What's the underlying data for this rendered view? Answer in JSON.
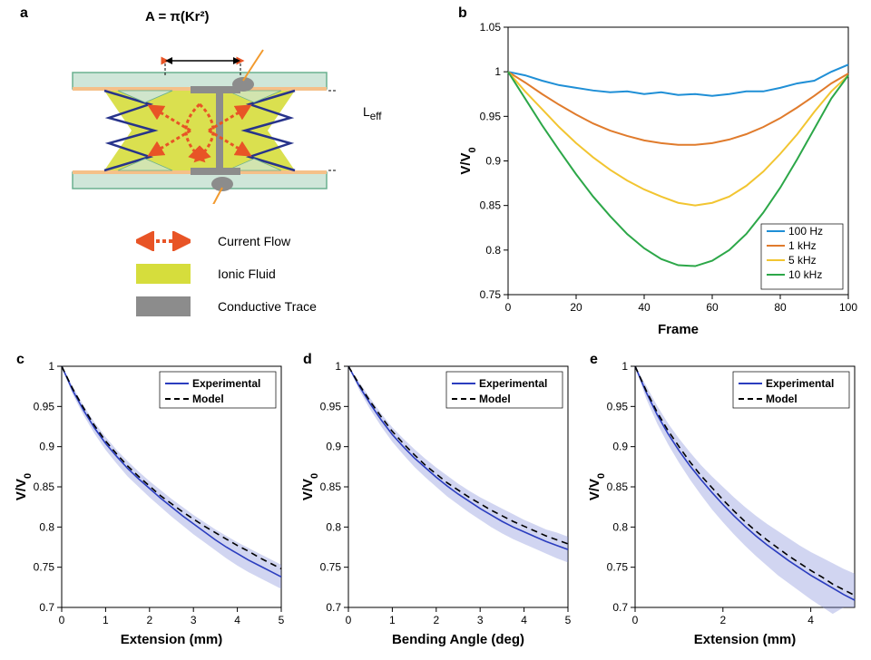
{
  "panel_labels": {
    "a": "a",
    "b": "b",
    "c": "c",
    "d": "d",
    "e": "e"
  },
  "panel_a": {
    "formula": "A = π(Kr²)",
    "leff_label": "L",
    "leff_sub": "eff",
    "legend": {
      "current_flow": "Current Flow",
      "ionic_fluid": "Ionic Fluid",
      "conductive_trace": "Conductive Trace"
    },
    "colors": {
      "fluid": "#d6dd3c",
      "trace": "#8c8c8c",
      "arrow": "#e85426",
      "zigzag": "#27338b",
      "plate_fill": "#cfe6d9",
      "plate_stroke": "#6ab08f",
      "membrane": "#f5c089",
      "wire": "#f29a2e"
    }
  },
  "panel_b": {
    "type": "line",
    "xlabel": "Frame",
    "ylabel": "V/V",
    "ylabel_sub": "0",
    "xlim": [
      0,
      100
    ],
    "ylim": [
      0.75,
      1.05
    ],
    "xticks": [
      0,
      20,
      40,
      60,
      80,
      100
    ],
    "yticks": [
      0.75,
      0.8,
      0.85,
      0.9,
      0.95,
      1,
      1.05
    ],
    "background": "#ffffff",
    "box_color": "#000000",
    "line_width": 2,
    "tick_fontsize": 12,
    "label_fontsize": 15,
    "legend_pos": "lower-right",
    "series": [
      {
        "name": "100 Hz",
        "color": "#1f8fd6",
        "x": [
          0,
          5,
          10,
          15,
          20,
          25,
          30,
          35,
          40,
          45,
          50,
          55,
          60,
          65,
          70,
          75,
          80,
          85,
          90,
          95,
          100
        ],
        "y": [
          1.0,
          0.996,
          0.99,
          0.985,
          0.982,
          0.979,
          0.977,
          0.978,
          0.975,
          0.977,
          0.974,
          0.975,
          0.973,
          0.975,
          0.978,
          0.978,
          0.982,
          0.987,
          0.99,
          1.0,
          1.008
        ]
      },
      {
        "name": "1 kHz",
        "color": "#e07b2c",
        "x": [
          0,
          5,
          10,
          15,
          20,
          25,
          30,
          35,
          40,
          45,
          50,
          55,
          60,
          65,
          70,
          75,
          80,
          85,
          90,
          95,
          100
        ],
        "y": [
          1.0,
          0.988,
          0.975,
          0.963,
          0.952,
          0.942,
          0.934,
          0.928,
          0.923,
          0.92,
          0.918,
          0.918,
          0.92,
          0.924,
          0.93,
          0.938,
          0.948,
          0.96,
          0.973,
          0.987,
          0.998
        ]
      },
      {
        "name": "5 kHz",
        "color": "#f2c531",
        "x": [
          0,
          5,
          10,
          15,
          20,
          25,
          30,
          35,
          40,
          45,
          50,
          55,
          60,
          65,
          70,
          75,
          80,
          85,
          90,
          95,
          100
        ],
        "y": [
          1.0,
          0.978,
          0.958,
          0.938,
          0.92,
          0.904,
          0.89,
          0.878,
          0.868,
          0.86,
          0.853,
          0.85,
          0.853,
          0.86,
          0.872,
          0.888,
          0.908,
          0.93,
          0.955,
          0.978,
          0.996
        ]
      },
      {
        "name": "10 kHz",
        "color": "#2ca748",
        "x": [
          0,
          5,
          10,
          15,
          20,
          25,
          30,
          35,
          40,
          45,
          50,
          55,
          60,
          65,
          70,
          75,
          80,
          85,
          90,
          95,
          100
        ],
        "y": [
          1.0,
          0.97,
          0.94,
          0.912,
          0.885,
          0.86,
          0.838,
          0.818,
          0.802,
          0.79,
          0.783,
          0.782,
          0.788,
          0.8,
          0.818,
          0.842,
          0.87,
          0.902,
          0.936,
          0.97,
          0.996
        ]
      }
    ]
  },
  "panel_c": {
    "type": "line",
    "xlabel": "Extension (mm)",
    "ylabel": "V/V",
    "ylabel_sub": "0",
    "xlim": [
      0,
      5
    ],
    "ylim": [
      0.7,
      1.0
    ],
    "xticks": [
      0,
      1,
      2,
      3,
      4,
      5
    ],
    "yticks": [
      0.7,
      0.75,
      0.8,
      0.85,
      0.9,
      0.95,
      1
    ],
    "line_width": 1.6,
    "exp_color": "#2b3dbf",
    "model_color": "#000000",
    "band_color": "#7a86d8",
    "band_opacity": 0.35,
    "legend": {
      "experimental": "Experimental",
      "model": "Model"
    },
    "x": [
      0,
      0.25,
      0.5,
      0.75,
      1.0,
      1.25,
      1.5,
      1.75,
      2.0,
      2.25,
      2.5,
      2.75,
      3.0,
      3.25,
      3.5,
      3.75,
      4.0,
      4.25,
      4.5,
      4.75,
      5.0
    ],
    "exp": [
      1.0,
      0.97,
      0.945,
      0.923,
      0.904,
      0.888,
      0.873,
      0.86,
      0.848,
      0.836,
      0.825,
      0.814,
      0.804,
      0.794,
      0.784,
      0.775,
      0.767,
      0.759,
      0.752,
      0.745,
      0.738
    ],
    "model": [
      1.0,
      0.972,
      0.948,
      0.926,
      0.907,
      0.891,
      0.876,
      0.863,
      0.851,
      0.839,
      0.829,
      0.819,
      0.81,
      0.801,
      0.793,
      0.785,
      0.777,
      0.77,
      0.762,
      0.755,
      0.748
    ],
    "lo": [
      1.0,
      0.965,
      0.939,
      0.916,
      0.896,
      0.879,
      0.863,
      0.85,
      0.837,
      0.825,
      0.813,
      0.802,
      0.791,
      0.781,
      0.771,
      0.761,
      0.752,
      0.744,
      0.737,
      0.73,
      0.723
    ],
    "hi": [
      1.0,
      0.975,
      0.951,
      0.93,
      0.912,
      0.896,
      0.882,
      0.869,
      0.857,
      0.846,
      0.835,
      0.825,
      0.815,
      0.806,
      0.797,
      0.789,
      0.781,
      0.774,
      0.767,
      0.76,
      0.753
    ]
  },
  "panel_d": {
    "type": "line",
    "xlabel": "Bending Angle (deg)",
    "ylabel": "V/V",
    "ylabel_sub": "0",
    "xlim": [
      0,
      5
    ],
    "ylim": [
      0.7,
      1.0
    ],
    "xticks": [
      0,
      1,
      2,
      3,
      4,
      5
    ],
    "yticks": [
      0.7,
      0.75,
      0.8,
      0.85,
      0.9,
      0.95,
      1
    ],
    "line_width": 1.6,
    "exp_color": "#2b3dbf",
    "model_color": "#000000",
    "band_color": "#7a86d8",
    "band_opacity": 0.35,
    "legend": {
      "experimental": "Experimental",
      "model": "Model"
    },
    "x": [
      0,
      0.25,
      0.5,
      0.75,
      1.0,
      1.25,
      1.5,
      1.75,
      2.0,
      2.25,
      2.5,
      2.75,
      3.0,
      3.25,
      3.5,
      3.75,
      4.0,
      4.25,
      4.5,
      4.75,
      5.0
    ],
    "exp": [
      1.0,
      0.975,
      0.953,
      0.933,
      0.915,
      0.9,
      0.886,
      0.874,
      0.862,
      0.851,
      0.841,
      0.832,
      0.823,
      0.815,
      0.807,
      0.8,
      0.794,
      0.788,
      0.782,
      0.777,
      0.772
    ],
    "model": [
      1.0,
      0.977,
      0.956,
      0.937,
      0.919,
      0.904,
      0.89,
      0.877,
      0.866,
      0.855,
      0.846,
      0.837,
      0.829,
      0.821,
      0.814,
      0.807,
      0.801,
      0.795,
      0.789,
      0.784,
      0.779
    ],
    "lo": [
      1.0,
      0.97,
      0.946,
      0.925,
      0.906,
      0.89,
      0.875,
      0.862,
      0.85,
      0.838,
      0.828,
      0.818,
      0.809,
      0.8,
      0.792,
      0.785,
      0.779,
      0.773,
      0.767,
      0.761,
      0.756
    ],
    "hi": [
      1.0,
      0.98,
      0.96,
      0.941,
      0.924,
      0.91,
      0.897,
      0.885,
      0.874,
      0.864,
      0.854,
      0.845,
      0.837,
      0.83,
      0.823,
      0.816,
      0.809,
      0.803,
      0.797,
      0.793,
      0.788
    ]
  },
  "panel_e": {
    "type": "line",
    "xlabel": "Extension (mm)",
    "ylabel": "V/V",
    "ylabel_sub": "0",
    "xlim": [
      0,
      5
    ],
    "ylim": [
      0.7,
      1.0
    ],
    "xticks": [
      0,
      2,
      4
    ],
    "yticks": [
      0.7,
      0.75,
      0.8,
      0.85,
      0.9,
      0.95,
      1
    ],
    "line_width": 1.6,
    "exp_color": "#2b3dbf",
    "model_color": "#000000",
    "band_color": "#7a86d8",
    "band_opacity": 0.35,
    "legend": {
      "experimental": "Experimental",
      "model": "Model"
    },
    "x": [
      0,
      0.25,
      0.5,
      0.75,
      1.0,
      1.25,
      1.5,
      1.75,
      2.0,
      2.25,
      2.5,
      2.75,
      3.0,
      3.25,
      3.5,
      3.75,
      4.0,
      4.25,
      4.5,
      4.75,
      5.0
    ],
    "exp": [
      1.0,
      0.968,
      0.94,
      0.916,
      0.895,
      0.876,
      0.859,
      0.843,
      0.828,
      0.814,
      0.801,
      0.789,
      0.778,
      0.768,
      0.758,
      0.749,
      0.74,
      0.732,
      0.724,
      0.716,
      0.709
    ],
    "model": [
      1.0,
      0.97,
      0.943,
      0.92,
      0.9,
      0.881,
      0.864,
      0.849,
      0.834,
      0.82,
      0.807,
      0.795,
      0.784,
      0.774,
      0.764,
      0.755,
      0.746,
      0.738,
      0.729,
      0.722,
      0.715
    ],
    "lo": [
      1.0,
      0.96,
      0.929,
      0.903,
      0.88,
      0.859,
      0.84,
      0.822,
      0.806,
      0.791,
      0.777,
      0.764,
      0.752,
      0.74,
      0.73,
      0.72,
      0.71,
      0.701,
      0.692,
      0.7,
      0.7
    ],
    "hi": [
      1.0,
      0.976,
      0.951,
      0.929,
      0.91,
      0.893,
      0.877,
      0.863,
      0.85,
      0.837,
      0.825,
      0.814,
      0.804,
      0.795,
      0.786,
      0.777,
      0.769,
      0.762,
      0.755,
      0.748,
      0.742
    ]
  }
}
